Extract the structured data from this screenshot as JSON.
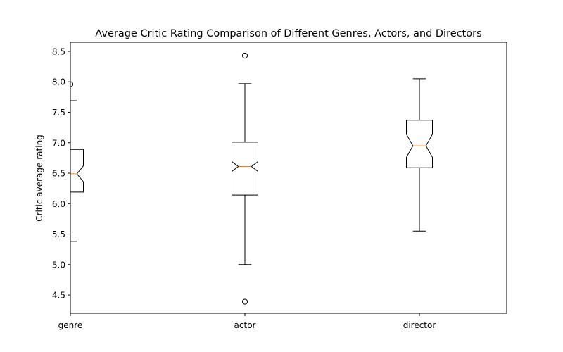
{
  "chart_data": {
    "type": "boxplot",
    "title": "Average Critic Rating Comparison of Different Genres, Actors, and Directors",
    "ylabel": "Critic average rating",
    "xlabel": "",
    "categories": [
      "genre",
      "actor",
      "director"
    ],
    "ylim": [
      4.2,
      8.65
    ],
    "yticks": [
      "4.5",
      "5.0",
      "5.5",
      "6.0",
      "6.5",
      "7.0",
      "7.5",
      "8.0",
      "8.5"
    ],
    "notched": true,
    "grid": false,
    "boxes": [
      {
        "category": "genre",
        "whisker_low": 5.38,
        "q1": 6.19,
        "median": 6.49,
        "q3": 6.89,
        "whisker_high": 7.69,
        "notch_low": 6.36,
        "notch_high": 6.62,
        "outliers": [
          7.96
        ]
      },
      {
        "category": "actor",
        "whisker_low": 5.0,
        "q1": 6.14,
        "median": 6.61,
        "q3": 7.01,
        "whisker_high": 7.97,
        "notch_low": 6.53,
        "notch_high": 6.69,
        "outliers": [
          8.43,
          4.39
        ]
      },
      {
        "category": "director",
        "whisker_low": 5.55,
        "q1": 6.59,
        "median": 6.95,
        "q3": 7.37,
        "whisker_high": 8.05,
        "notch_low": 6.76,
        "notch_high": 7.14,
        "outliers": []
      }
    ],
    "colors": {
      "box": "#000000",
      "median": "#ff7f0e",
      "flier": "#000000",
      "axes": "#000000"
    }
  }
}
